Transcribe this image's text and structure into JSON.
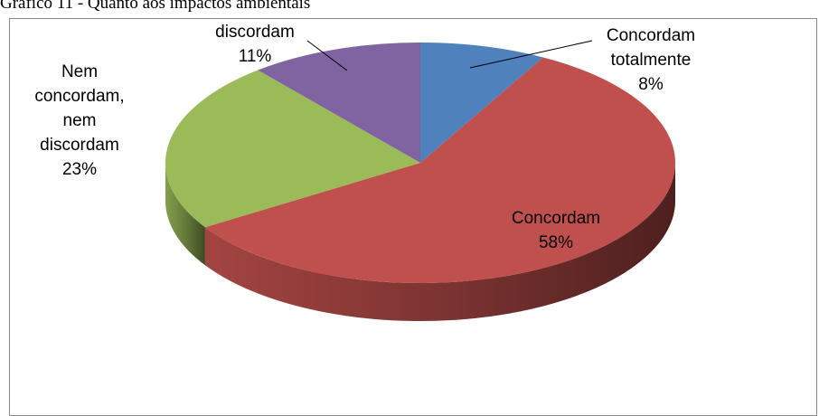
{
  "chart_data": {
    "type": "pie3d",
    "title": "Gráfico 11 - Quanto aos impactos ambientais",
    "categories": [
      "Concordam totalmente",
      "Concordam",
      "Nem concordam, nem discordam",
      "discordam"
    ],
    "values": [
      8,
      58,
      23,
      11
    ],
    "value_labels": [
      "8%",
      "58%",
      "23%",
      "11%"
    ],
    "colors": [
      "#4f81bd",
      "#c0504d",
      "#9bbb59",
      "#8064a2"
    ]
  }
}
